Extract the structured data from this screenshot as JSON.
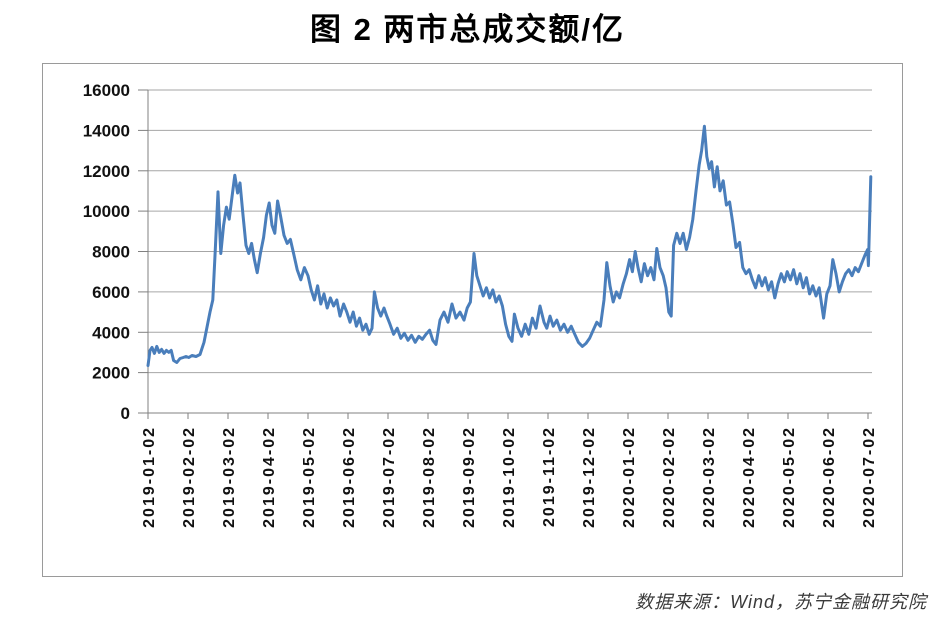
{
  "title": "图 2 两市总成交额/亿",
  "source_note": "数据来源：Wind，苏宁金融研究院",
  "colors": {
    "line": "#4a7ebb",
    "grid": "#a6a6a6",
    "axis": "#808080",
    "frame": "#9a9a9a",
    "tick_text": "#111111"
  },
  "chart_data": {
    "type": "line",
    "title": "图 2 两市总成交额/亿",
    "xlabel": "",
    "ylabel": "",
    "ylim": [
      0,
      16000
    ],
    "y_ticks": [
      0,
      2000,
      4000,
      6000,
      8000,
      10000,
      12000,
      14000,
      16000
    ],
    "x_tick_labels": [
      "2019-01-02",
      "2019-02-02",
      "2019-03-02",
      "2019-04-02",
      "2019-05-02",
      "2019-06-02",
      "2019-07-02",
      "2019-08-02",
      "2019-09-02",
      "2019-10-02",
      "2019-11-02",
      "2019-12-02",
      "2020-01-02",
      "2020-02-02",
      "2020-03-02",
      "2020-04-02",
      "2020-05-02",
      "2020-06-02",
      "2020-07-02"
    ],
    "x_unit": "months_after_2019-01-02",
    "grid": "horizontal",
    "legend_position": "none",
    "line_color": "#4a7ebb",
    "points": [
      [
        0.0,
        2350
      ],
      [
        0.05,
        3100
      ],
      [
        0.1,
        3250
      ],
      [
        0.16,
        2950
      ],
      [
        0.22,
        3300
      ],
      [
        0.28,
        3000
      ],
      [
        0.34,
        3150
      ],
      [
        0.4,
        2950
      ],
      [
        0.46,
        3100
      ],
      [
        0.52,
        3000
      ],
      [
        0.58,
        3100
      ],
      [
        0.64,
        2600
      ],
      [
        0.72,
        2500
      ],
      [
        0.8,
        2700
      ],
      [
        0.88,
        2750
      ],
      [
        0.95,
        2800
      ],
      [
        1.02,
        2750
      ],
      [
        1.1,
        2850
      ],
      [
        1.2,
        2800
      ],
      [
        1.3,
        2900
      ],
      [
        1.4,
        3500
      ],
      [
        1.48,
        4300
      ],
      [
        1.55,
        5000
      ],
      [
        1.62,
        5600
      ],
      [
        1.68,
        8000
      ],
      [
        1.75,
        10950
      ],
      [
        1.82,
        7900
      ],
      [
        1.89,
        9300
      ],
      [
        1.96,
        10200
      ],
      [
        2.03,
        9600
      ],
      [
        2.1,
        10700
      ],
      [
        2.17,
        11780
      ],
      [
        2.24,
        10900
      ],
      [
        2.3,
        11400
      ],
      [
        2.38,
        9700
      ],
      [
        2.45,
        8300
      ],
      [
        2.52,
        7900
      ],
      [
        2.59,
        8400
      ],
      [
        2.66,
        7600
      ],
      [
        2.73,
        6950
      ],
      [
        2.81,
        7900
      ],
      [
        2.89,
        8700
      ],
      [
        2.96,
        9800
      ],
      [
        3.03,
        10400
      ],
      [
        3.1,
        9300
      ],
      [
        3.17,
        8900
      ],
      [
        3.24,
        10500
      ],
      [
        3.31,
        9800
      ],
      [
        3.4,
        8800
      ],
      [
        3.48,
        8400
      ],
      [
        3.56,
        8600
      ],
      [
        3.64,
        7900
      ],
      [
        3.73,
        7100
      ],
      [
        3.82,
        6600
      ],
      [
        3.91,
        7200
      ],
      [
        4.0,
        6800
      ],
      [
        4.08,
        6100
      ],
      [
        4.16,
        5600
      ],
      [
        4.24,
        6300
      ],
      [
        4.32,
        5400
      ],
      [
        4.4,
        5900
      ],
      [
        4.48,
        5200
      ],
      [
        4.56,
        5700
      ],
      [
        4.64,
        5300
      ],
      [
        4.72,
        5600
      ],
      [
        4.8,
        4800
      ],
      [
        4.89,
        5400
      ],
      [
        4.97,
        5000
      ],
      [
        5.05,
        4500
      ],
      [
        5.13,
        5000
      ],
      [
        5.21,
        4300
      ],
      [
        5.29,
        4700
      ],
      [
        5.37,
        4100
      ],
      [
        5.45,
        4400
      ],
      [
        5.53,
        3900
      ],
      [
        5.6,
        4200
      ],
      [
        5.66,
        6000
      ],
      [
        5.74,
        5200
      ],
      [
        5.82,
        4800
      ],
      [
        5.9,
        5200
      ],
      [
        5.97,
        4800
      ],
      [
        6.05,
        4400
      ],
      [
        6.14,
        3900
      ],
      [
        6.23,
        4200
      ],
      [
        6.32,
        3700
      ],
      [
        6.41,
        3950
      ],
      [
        6.5,
        3600
      ],
      [
        6.59,
        3850
      ],
      [
        6.68,
        3500
      ],
      [
        6.77,
        3800
      ],
      [
        6.86,
        3650
      ],
      [
        6.95,
        3900
      ],
      [
        7.04,
        4100
      ],
      [
        7.12,
        3600
      ],
      [
        7.2,
        3400
      ],
      [
        7.3,
        4600
      ],
      [
        7.4,
        5000
      ],
      [
        7.5,
        4500
      ],
      [
        7.6,
        5400
      ],
      [
        7.7,
        4700
      ],
      [
        7.8,
        5000
      ],
      [
        7.9,
        4600
      ],
      [
        7.98,
        5200
      ],
      [
        8.06,
        5500
      ],
      [
        8.15,
        7900
      ],
      [
        8.22,
        6800
      ],
      [
        8.3,
        6300
      ],
      [
        8.38,
        5800
      ],
      [
        8.46,
        6200
      ],
      [
        8.54,
        5700
      ],
      [
        8.62,
        6100
      ],
      [
        8.7,
        5500
      ],
      [
        8.78,
        5800
      ],
      [
        8.86,
        5300
      ],
      [
        8.94,
        4400
      ],
      [
        9.02,
        3800
      ],
      [
        9.1,
        3550
      ],
      [
        9.16,
        4900
      ],
      [
        9.25,
        4200
      ],
      [
        9.34,
        3800
      ],
      [
        9.43,
        4400
      ],
      [
        9.52,
        3900
      ],
      [
        9.61,
        4700
      ],
      [
        9.7,
        4200
      ],
      [
        9.8,
        5300
      ],
      [
        9.9,
        4500
      ],
      [
        9.97,
        4200
      ],
      [
        10.05,
        4800
      ],
      [
        10.13,
        4300
      ],
      [
        10.22,
        4600
      ],
      [
        10.31,
        4100
      ],
      [
        10.4,
        4400
      ],
      [
        10.49,
        4000
      ],
      [
        10.58,
        4300
      ],
      [
        10.67,
        3900
      ],
      [
        10.76,
        3500
      ],
      [
        10.86,
        3300
      ],
      [
        10.95,
        3450
      ],
      [
        11.04,
        3700
      ],
      [
        11.13,
        4100
      ],
      [
        11.22,
        4500
      ],
      [
        11.31,
        4300
      ],
      [
        11.4,
        5600
      ],
      [
        11.47,
        7450
      ],
      [
        11.55,
        6300
      ],
      [
        11.63,
        5500
      ],
      [
        11.71,
        6000
      ],
      [
        11.79,
        5700
      ],
      [
        11.88,
        6400
      ],
      [
        11.96,
        6900
      ],
      [
        12.04,
        7600
      ],
      [
        12.11,
        7000
      ],
      [
        12.18,
        8000
      ],
      [
        12.25,
        7200
      ],
      [
        12.33,
        6500
      ],
      [
        12.41,
        7400
      ],
      [
        12.49,
        6800
      ],
      [
        12.57,
        7200
      ],
      [
        12.65,
        6600
      ],
      [
        12.72,
        8150
      ],
      [
        12.8,
        7200
      ],
      [
        12.88,
        6800
      ],
      [
        12.95,
        6200
      ],
      [
        13.02,
        5000
      ],
      [
        13.08,
        4800
      ],
      [
        13.14,
        8300
      ],
      [
        13.22,
        8900
      ],
      [
        13.3,
        8400
      ],
      [
        13.38,
        8900
      ],
      [
        13.46,
        8100
      ],
      [
        13.54,
        8700
      ],
      [
        13.62,
        9600
      ],
      [
        13.7,
        11000
      ],
      [
        13.78,
        12300
      ],
      [
        13.84,
        13000
      ],
      [
        13.91,
        14200
      ],
      [
        13.97,
        12700
      ],
      [
        14.03,
        12100
      ],
      [
        14.09,
        12450
      ],
      [
        14.16,
        11200
      ],
      [
        14.23,
        12200
      ],
      [
        14.3,
        11000
      ],
      [
        14.38,
        11500
      ],
      [
        14.46,
        10300
      ],
      [
        14.54,
        10450
      ],
      [
        14.62,
        9400
      ],
      [
        14.7,
        8200
      ],
      [
        14.79,
        8450
      ],
      [
        14.87,
        7200
      ],
      [
        14.95,
        6900
      ],
      [
        15.03,
        7100
      ],
      [
        15.11,
        6600
      ],
      [
        15.19,
        6200
      ],
      [
        15.27,
        6800
      ],
      [
        15.35,
        6300
      ],
      [
        15.43,
        6700
      ],
      [
        15.51,
        6100
      ],
      [
        15.59,
        6500
      ],
      [
        15.67,
        5700
      ],
      [
        15.75,
        6400
      ],
      [
        15.83,
        6900
      ],
      [
        15.91,
        6500
      ],
      [
        15.98,
        7000
      ],
      [
        16.06,
        6600
      ],
      [
        16.14,
        7100
      ],
      [
        16.22,
        6400
      ],
      [
        16.3,
        6900
      ],
      [
        16.38,
        6200
      ],
      [
        16.46,
        6700
      ],
      [
        16.54,
        5900
      ],
      [
        16.62,
        6300
      ],
      [
        16.7,
        5800
      ],
      [
        16.78,
        6200
      ],
      [
        16.89,
        4700
      ],
      [
        16.97,
        5900
      ],
      [
        17.05,
        6300
      ],
      [
        17.12,
        7600
      ],
      [
        17.2,
        6900
      ],
      [
        17.28,
        6000
      ],
      [
        17.36,
        6500
      ],
      [
        17.44,
        6900
      ],
      [
        17.52,
        7100
      ],
      [
        17.6,
        6800
      ],
      [
        17.68,
        7200
      ],
      [
        17.76,
        7000
      ],
      [
        17.84,
        7400
      ],
      [
        17.92,
        7800
      ],
      [
        17.99,
        8100
      ],
      [
        18.01,
        7300
      ],
      [
        18.07,
        11700
      ]
    ]
  }
}
